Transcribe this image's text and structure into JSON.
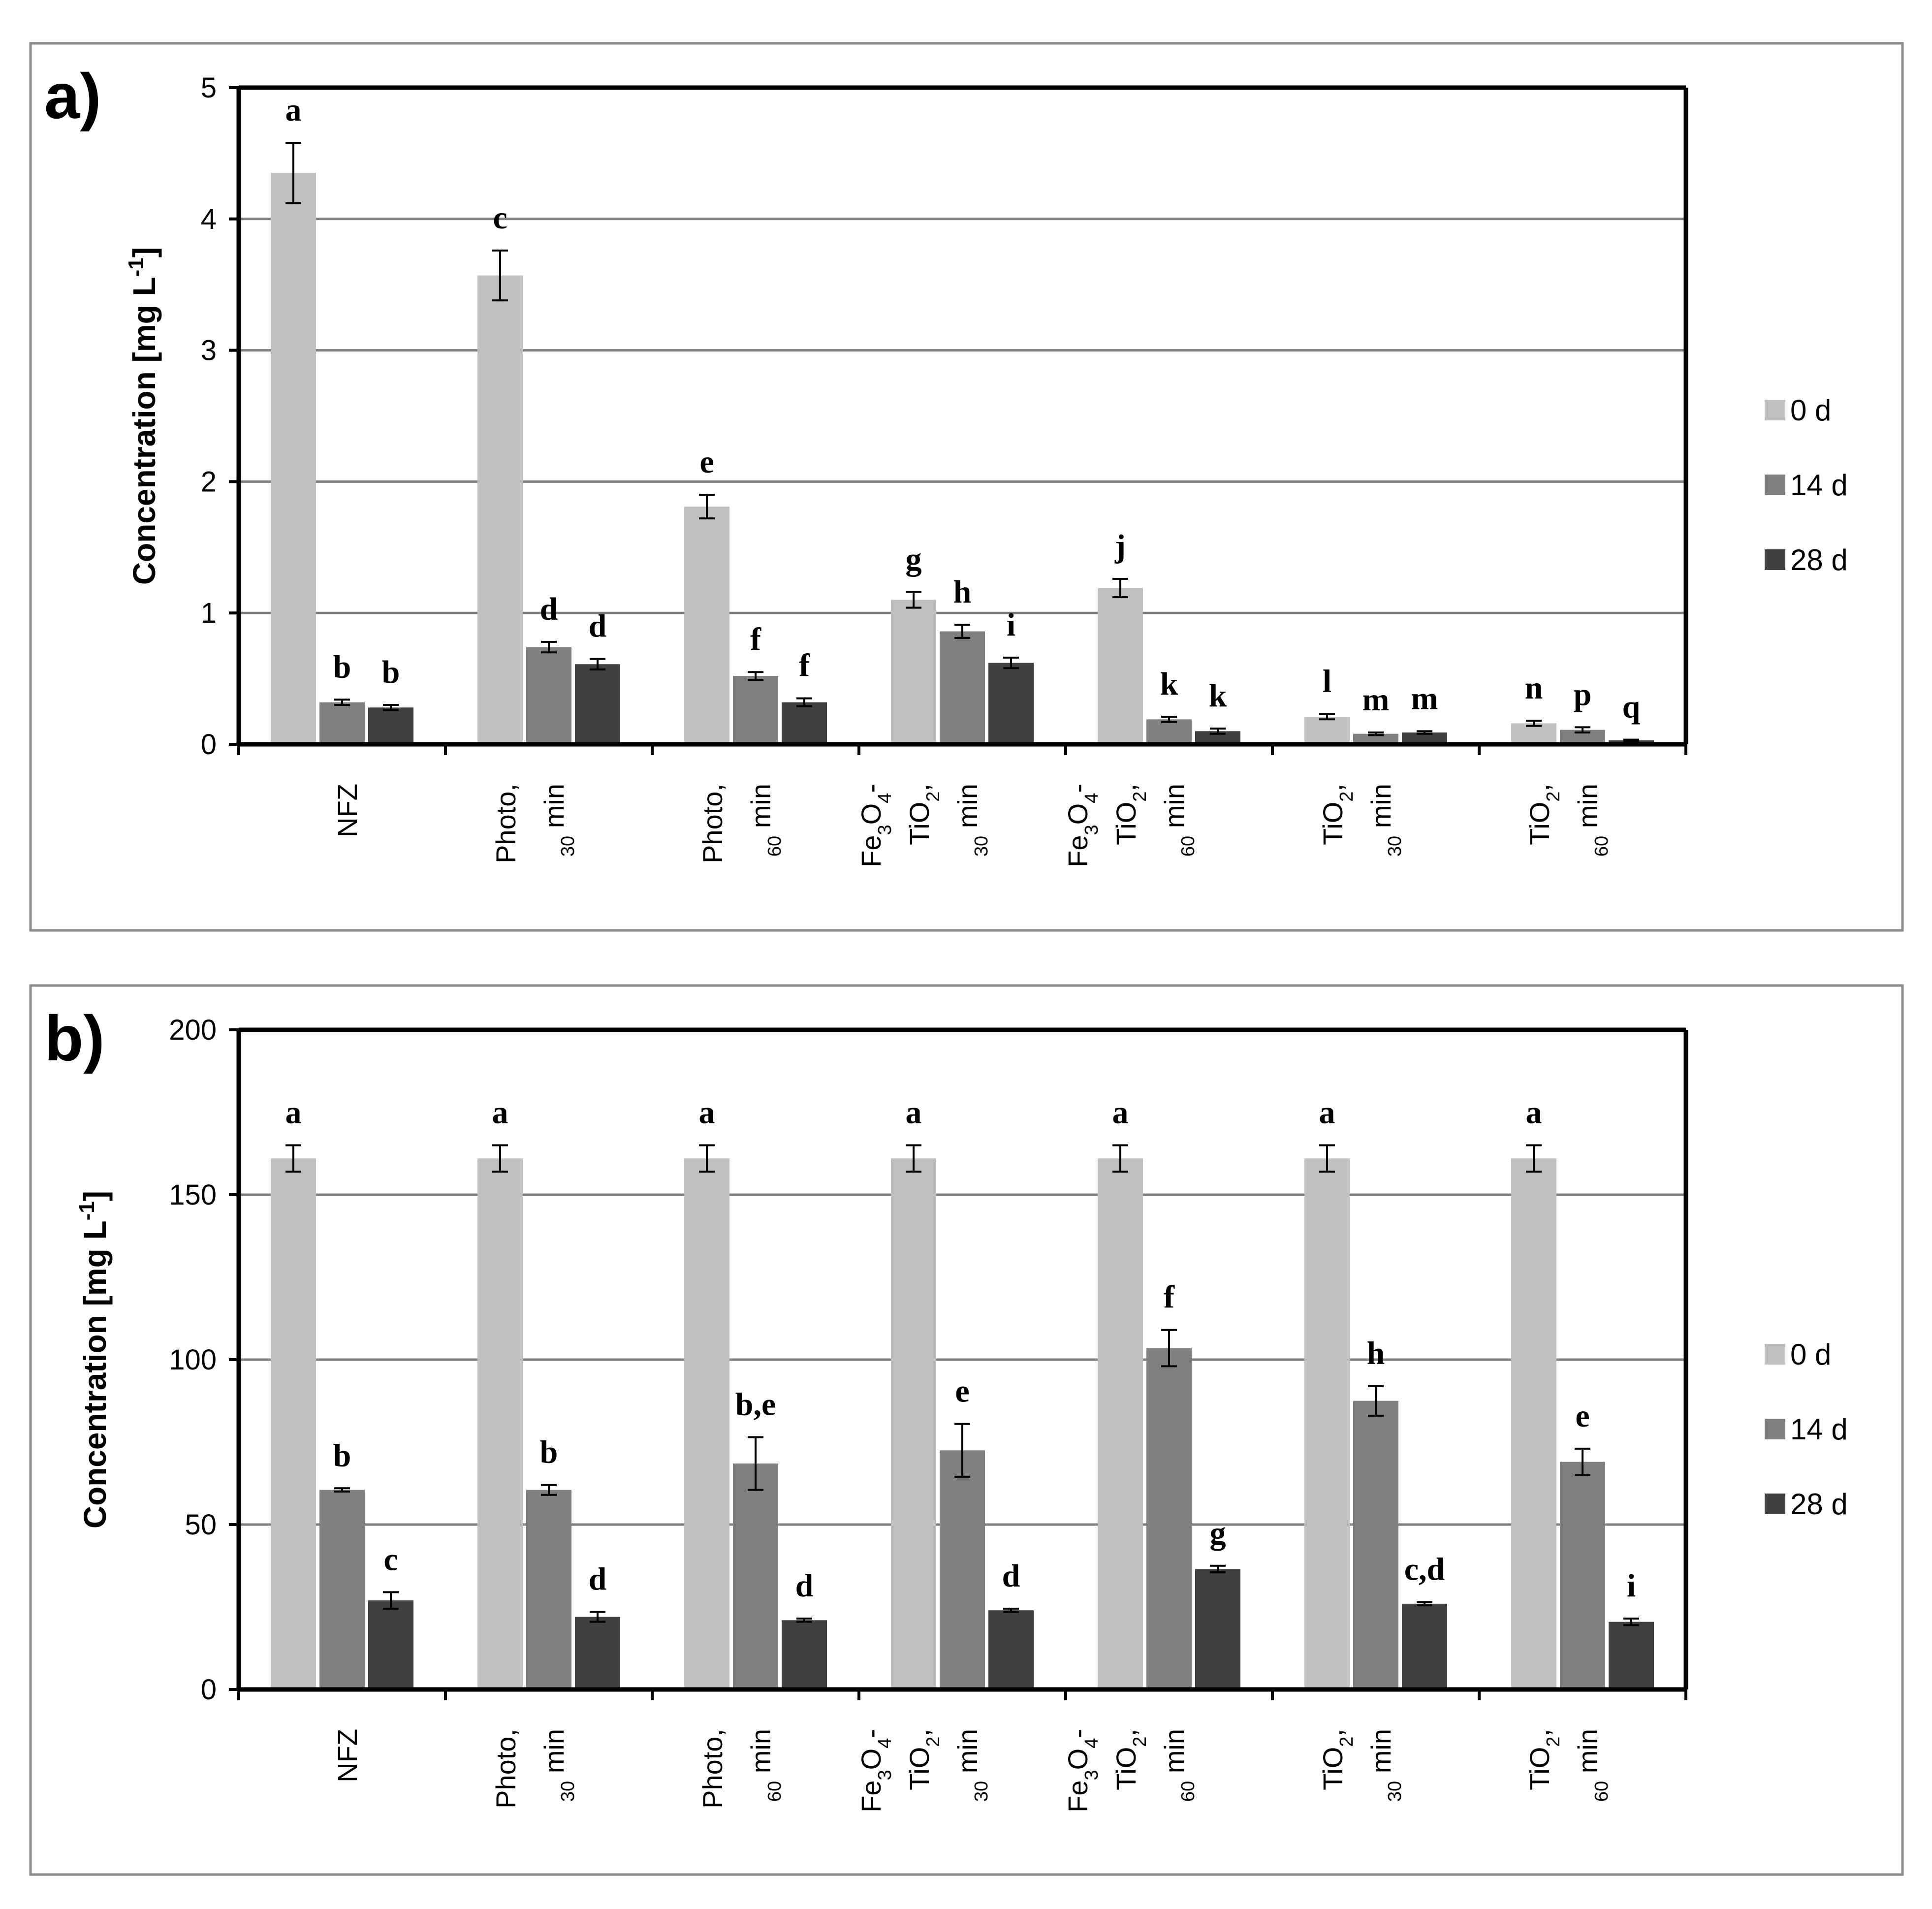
{
  "categories": [
    [
      "NFZ"
    ],
    [
      "Photo,",
      "30 min"
    ],
    [
      "Photo,",
      "60 min"
    ],
    [
      "Fe3O4-",
      "TiO2,",
      "30 min"
    ],
    [
      "Fe3O4-",
      "TiO2,",
      "60 min"
    ],
    [
      "TiO2,",
      "30 min"
    ],
    [
      "TiO2,",
      "60 min"
    ]
  ],
  "legend": [
    "0 d",
    "14 d",
    "28 d"
  ],
  "colors": {
    "day0": "#bfbfbf",
    "day14": "#7f7f7f",
    "day28": "#404040",
    "axis": "#000000",
    "grid": "#808080",
    "border": "#8c8c8c"
  },
  "chart_data": [
    {
      "panel": "a)",
      "type": "bar",
      "ylabel": "Concentration [mg L-1]",
      "ylim": [
        0,
        5
      ],
      "yticks": [
        0,
        1,
        2,
        3,
        4,
        5
      ],
      "series": [
        {
          "name": "0 d",
          "values": [
            4.35,
            3.57,
            1.81,
            1.1,
            1.19,
            0.21,
            0.16
          ],
          "errors": [
            0.23,
            0.19,
            0.09,
            0.06,
            0.07,
            0.02,
            0.02
          ],
          "letters": [
            "a",
            "c",
            "e",
            "g",
            "j",
            "l",
            "n"
          ]
        },
        {
          "name": "14 d",
          "values": [
            0.32,
            0.74,
            0.52,
            0.86,
            0.19,
            0.08,
            0.11
          ],
          "errors": [
            0.02,
            0.04,
            0.03,
            0.05,
            0.02,
            0.01,
            0.02
          ],
          "letters": [
            "b",
            "d",
            "f",
            "h",
            "k",
            "m",
            "p"
          ]
        },
        {
          "name": "28 d",
          "values": [
            0.28,
            0.61,
            0.32,
            0.62,
            0.1,
            0.09,
            0.03
          ],
          "errors": [
            0.02,
            0.04,
            0.03,
            0.04,
            0.02,
            0.01,
            0.005
          ],
          "letters": [
            "b",
            "d",
            "f",
            "i",
            "k",
            "m",
            "q"
          ]
        }
      ]
    },
    {
      "panel": "b)",
      "type": "bar",
      "ylabel": "Concentration [mg L-1]",
      "ylim": [
        0,
        200
      ],
      "yticks": [
        0,
        50,
        100,
        150,
        200
      ],
      "series": [
        {
          "name": "0 d",
          "values": [
            161,
            161,
            161,
            161,
            161,
            161,
            161
          ],
          "errors": [
            4,
            4,
            4,
            4,
            4,
            4,
            4
          ],
          "letters": [
            "a",
            "a",
            "a",
            "a",
            "a",
            "a",
            "a"
          ]
        },
        {
          "name": "14 d",
          "values": [
            60.5,
            60.5,
            68.5,
            72.5,
            103.5,
            87.5,
            69
          ],
          "errors": [
            0.5,
            1.5,
            8,
            8,
            5.5,
            4.5,
            4
          ],
          "letters": [
            "b",
            "b",
            "b,e",
            "e",
            "f",
            "h",
            "e"
          ]
        },
        {
          "name": "28 d",
          "values": [
            27,
            22,
            21,
            24,
            36.5,
            26,
            20.5
          ],
          "errors": [
            2.5,
            1.5,
            0.5,
            0.5,
            1,
            0.5,
            1
          ],
          "letters": [
            "c",
            "d",
            "d",
            "d",
            "g",
            "c,d",
            "i"
          ]
        }
      ]
    }
  ]
}
